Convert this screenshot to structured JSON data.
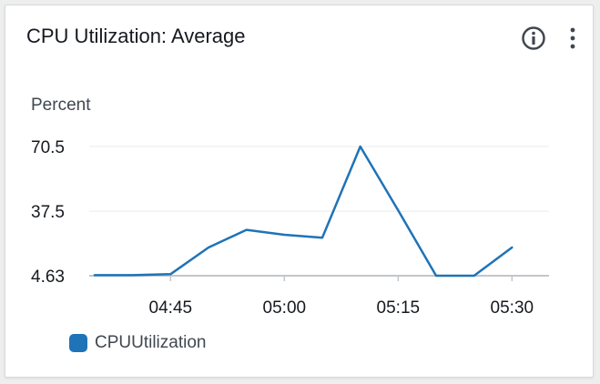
{
  "widget": {
    "title": "CPU Utilization: Average"
  },
  "icons": {
    "info": "info-circle-icon",
    "menu": "more-vertical-icon"
  },
  "colors": {
    "series": "#1f73b7",
    "grid": "#e9ebed",
    "baseline": "#c3c6ca",
    "text": "#16191f"
  },
  "chart_data": {
    "type": "line",
    "title": "CPU Utilization: Average",
    "ylabel": "Percent",
    "xlabel": "",
    "y_ticks": [
      70.5,
      37.5,
      4.63
    ],
    "y_tick_labels": [
      "70.5",
      "37.5",
      "4.63"
    ],
    "x_tick_labels": [
      "04:45",
      "05:00",
      "05:15",
      "05:30"
    ],
    "ylim": [
      4.63,
      70.5
    ],
    "grid": true,
    "legend_position": "bottom-left",
    "series": [
      {
        "name": "CPUUtilization",
        "x": [
          "04:35",
          "04:40",
          "04:45",
          "04:50",
          "04:55",
          "05:00",
          "05:05",
          "05:10",
          "05:15",
          "05:20",
          "05:25",
          "05:30"
        ],
        "values": [
          4.9,
          4.9,
          5.4,
          19,
          28,
          25.5,
          24,
          70.5,
          38,
          4.63,
          4.63,
          19
        ]
      }
    ]
  }
}
